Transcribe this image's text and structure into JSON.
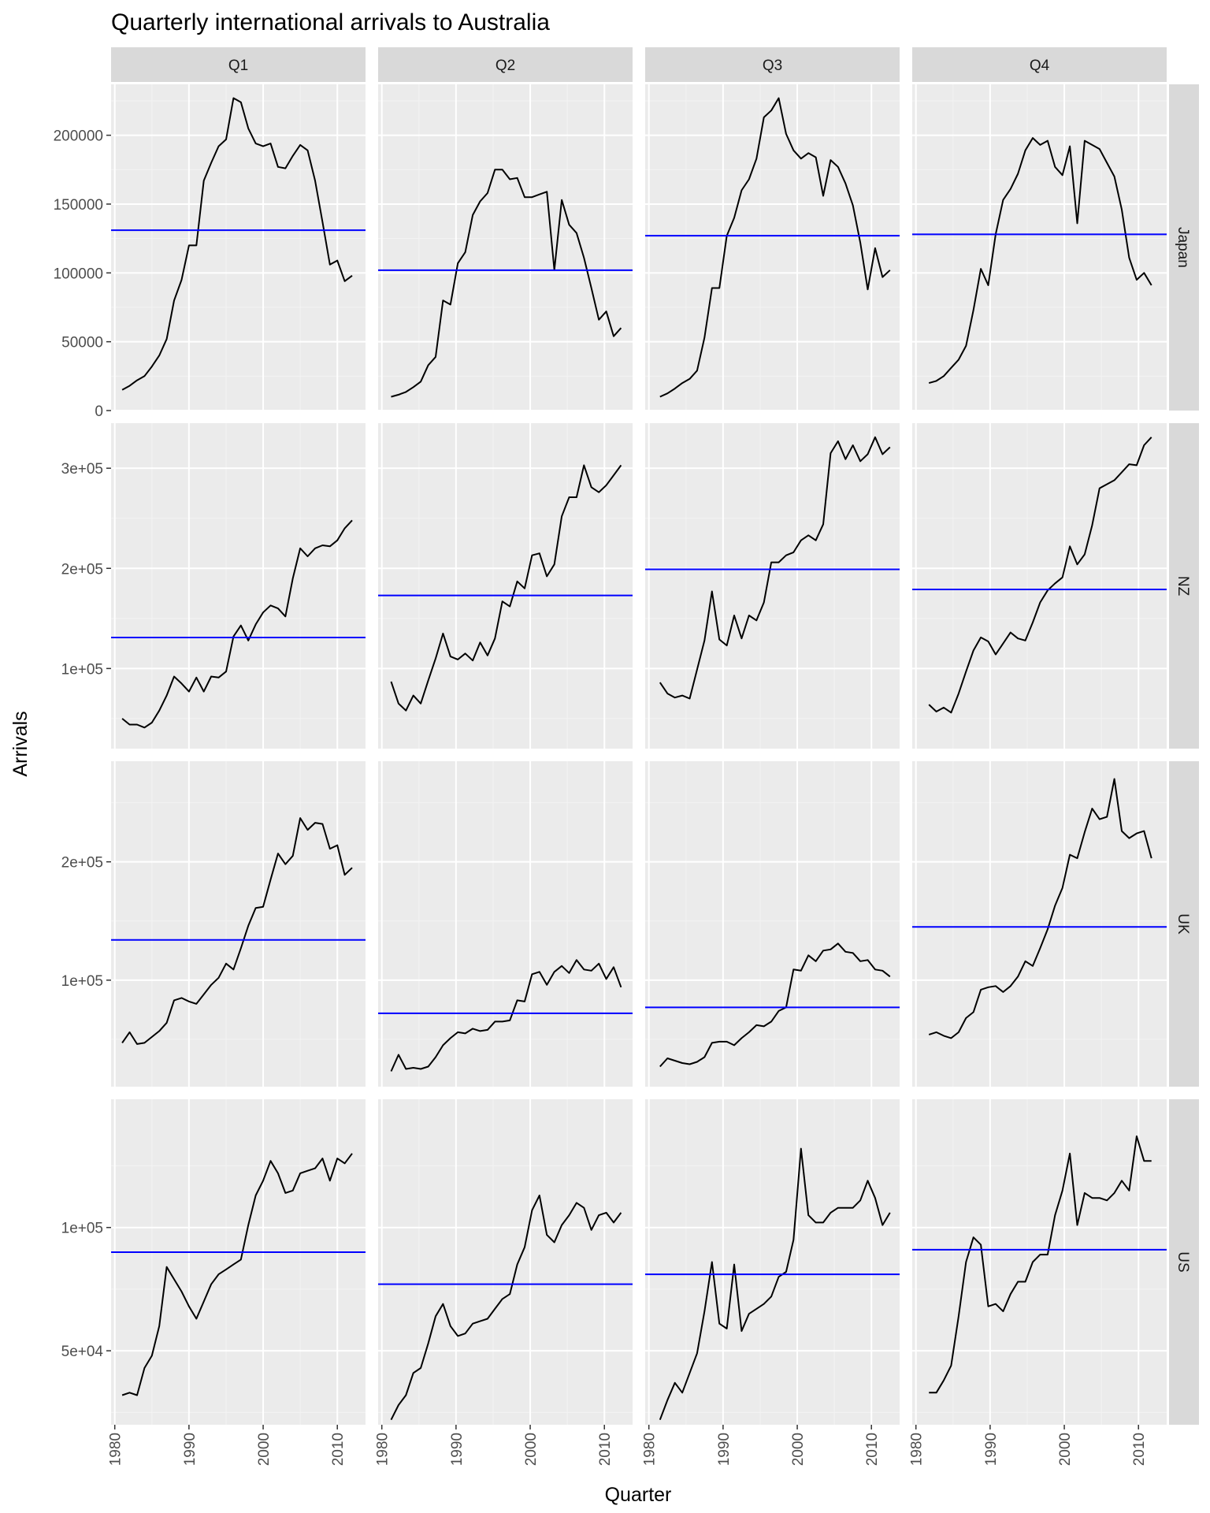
{
  "chart_data": {
    "type": "line",
    "layout": "facet_grid",
    "title": "Quarterly international arrivals to Australia",
    "xlabel": "Quarter",
    "ylabel": "Arrivals",
    "columns": [
      "Q1",
      "Q2",
      "Q3",
      "Q4"
    ],
    "rows": [
      {
        "name": "Japan",
        "ylim": [
          0,
          237000
        ],
        "yticks": [
          0,
          50000,
          100000,
          150000,
          200000
        ],
        "yticklabels": [
          "0",
          "50000",
          "100000",
          "150000",
          "200000"
        ]
      },
      {
        "name": "NZ",
        "ylim": [
          20000,
          345000
        ],
        "yticks": [
          100000,
          200000,
          300000
        ],
        "yticklabels": [
          "1e+05",
          "2e+05",
          "3e+05"
        ]
      },
      {
        "name": "UK",
        "ylim": [
          10000,
          285000
        ],
        "yticks": [
          100000,
          200000
        ],
        "yticklabels": [
          "1e+05",
          "2e+05"
        ]
      },
      {
        "name": "US",
        "ylim": [
          20000,
          152000
        ],
        "yticks": [
          50000,
          100000
        ],
        "yticklabels": [
          "5e+04",
          "1e+05"
        ]
      }
    ],
    "xlim": [
      1979.5,
      2013.8
    ],
    "xticks": [
      1980,
      1990,
      2000,
      2010
    ],
    "xticklabels": [
      "1980",
      "1990",
      "2000",
      "2010"
    ],
    "years": [
      1981,
      1982,
      1983,
      1984,
      1985,
      1986,
      1987,
      1988,
      1989,
      1990,
      1991,
      1992,
      1993,
      1994,
      1995,
      1996,
      1997,
      1998,
      1999,
      2000,
      2001,
      2002,
      2003,
      2004,
      2005,
      2006,
      2007,
      2008,
      2009,
      2010,
      2011,
      2012
    ],
    "series_color": "#000000",
    "mean_line_color": "#0000ff",
    "panels": [
      {
        "row": "Japan",
        "col": "Q1",
        "mean": 131000,
        "x0": 1981.0,
        "values": [
          15000,
          18000,
          22000,
          25000,
          32000,
          40000,
          52000,
          80000,
          95000,
          120000,
          120000,
          167000,
          180000,
          192000,
          197000,
          227000,
          224000,
          205000,
          194000,
          192000,
          194000,
          177000,
          176000,
          185000,
          193000,
          189000,
          167000,
          137000,
          106000,
          109000,
          94000,
          98000
        ]
      },
      {
        "row": "Japan",
        "col": "Q2",
        "mean": 102000,
        "x0": 1981.25,
        "values": [
          10000,
          11500,
          13500,
          17000,
          21000,
          33000,
          39000,
          80000,
          77000,
          107000,
          115000,
          142000,
          152000,
          158000,
          175000,
          175000,
          168000,
          169000,
          155000,
          155000,
          157000,
          159000,
          102000,
          153000,
          135000,
          129000,
          111000,
          89000,
          66000,
          72000,
          54000,
          60000
        ]
      },
      {
        "row": "Japan",
        "col": "Q3",
        "mean": 127000,
        "x0": 1981.5,
        "values": [
          10000,
          12500,
          16000,
          20000,
          23000,
          29000,
          53000,
          89000,
          89000,
          127000,
          140000,
          160000,
          168000,
          183000,
          213000,
          218000,
          227000,
          201000,
          189000,
          183000,
          187000,
          184000,
          156000,
          182000,
          177000,
          165000,
          149000,
          122000,
          88000,
          118000,
          97000,
          102000
        ]
      },
      {
        "row": "Japan",
        "col": "Q4",
        "mean": 128000,
        "x0": 1981.75,
        "values": [
          20000,
          21500,
          25000,
          31000,
          37000,
          47000,
          73000,
          103000,
          91000,
          128000,
          153000,
          161000,
          172000,
          189000,
          198000,
          193000,
          196000,
          177000,
          171000,
          192000,
          136000,
          196000,
          193000,
          190000,
          180000,
          170000,
          146000,
          111000,
          95000,
          100000,
          91000
        ]
      },
      {
        "row": "NZ",
        "col": "Q1",
        "mean": 131000,
        "x0": 1981.0,
        "values": [
          50000,
          44000,
          44000,
          41000,
          46000,
          58000,
          73000,
          92000,
          85000,
          77000,
          91000,
          77000,
          92000,
          91000,
          97000,
          132000,
          143000,
          128000,
          144000,
          156000,
          163000,
          160000,
          152000,
          190000,
          220000,
          212000,
          220000,
          223000,
          222000,
          228000,
          240000,
          248000
        ]
      },
      {
        "row": "NZ",
        "col": "Q2",
        "mean": 173000,
        "x0": 1981.25,
        "values": [
          87000,
          65000,
          58000,
          73000,
          65000,
          88000,
          110000,
          135000,
          112000,
          109000,
          115000,
          108000,
          126000,
          113000,
          130000,
          167000,
          162000,
          187000,
          180000,
          213000,
          215000,
          192000,
          204000,
          252000,
          271000,
          271000,
          303000,
          281000,
          276000,
          283000,
          293000,
          303000
        ]
      },
      {
        "row": "NZ",
        "col": "Q3",
        "mean": 199000,
        "x0": 1981.5,
        "values": [
          86000,
          75000,
          71000,
          73000,
          70000,
          99000,
          128000,
          177000,
          129000,
          123000,
          153000,
          130000,
          153000,
          148000,
          166000,
          206000,
          206000,
          213000,
          216000,
          228000,
          233000,
          228000,
          244000,
          315000,
          327000,
          309000,
          323000,
          307000,
          314000,
          331000,
          314000,
          321000
        ]
      },
      {
        "row": "NZ",
        "col": "Q4",
        "mean": 179000,
        "x0": 1981.75,
        "values": [
          64000,
          57000,
          61000,
          56000,
          75000,
          97000,
          118000,
          131000,
          127000,
          114000,
          125000,
          136000,
          130000,
          128000,
          146000,
          166000,
          178000,
          185000,
          191000,
          222000,
          204000,
          214000,
          243000,
          280000,
          284000,
          288000,
          296000,
          304000,
          303000,
          323000,
          331000
        ]
      },
      {
        "row": "UK",
        "col": "Q1",
        "mean": 134000,
        "x0": 1981.0,
        "values": [
          47000,
          56000,
          46000,
          47000,
          52000,
          57000,
          64000,
          83000,
          85000,
          82000,
          80000,
          88000,
          96000,
          102000,
          114000,
          109000,
          127000,
          146000,
          161000,
          162000,
          185000,
          207000,
          198000,
          205000,
          237000,
          227000,
          233000,
          232000,
          211000,
          214000,
          189000,
          195000
        ]
      },
      {
        "row": "UK",
        "col": "Q2",
        "mean": 72000,
        "x0": 1981.25,
        "values": [
          23000,
          37000,
          25000,
          26000,
          25000,
          27000,
          35000,
          45000,
          51000,
          56000,
          55000,
          59000,
          57000,
          58000,
          65000,
          65000,
          66000,
          83000,
          82000,
          105000,
          107000,
          96000,
          107000,
          112000,
          106000,
          117000,
          109000,
          108000,
          114000,
          101000,
          111000,
          94000
        ]
      },
      {
        "row": "UK",
        "col": "Q3",
        "mean": 77000,
        "x0": 1981.5,
        "values": [
          27000,
          34000,
          32000,
          30000,
          29000,
          31000,
          35000,
          47000,
          48000,
          48000,
          45000,
          51000,
          56000,
          62000,
          61000,
          65000,
          74000,
          77000,
          109000,
          108000,
          121000,
          116000,
          125000,
          126000,
          131000,
          124000,
          123000,
          116000,
          117000,
          109000,
          108000,
          103000
        ]
      },
      {
        "row": "UK",
        "col": "Q4",
        "mean": 145000,
        "x0": 1981.75,
        "values": [
          54000,
          56000,
          53000,
          51000,
          56000,
          68000,
          73000,
          92000,
          94000,
          95000,
          90000,
          95000,
          103000,
          116000,
          112000,
          127000,
          143000,
          163000,
          178000,
          206000,
          203000,
          225000,
          245000,
          236000,
          238000,
          270000,
          226000,
          220000,
          224000,
          226000,
          203000
        ]
      },
      {
        "row": "US",
        "col": "Q1",
        "mean": 90000,
        "x0": 1981.0,
        "values": [
          32000,
          33000,
          32000,
          43000,
          48000,
          60000,
          84000,
          79000,
          74000,
          68000,
          63000,
          70000,
          77000,
          81000,
          83000,
          85000,
          87000,
          101000,
          113000,
          119000,
          127000,
          122000,
          114000,
          115000,
          122000,
          123000,
          124000,
          128000,
          119000,
          128000,
          126000,
          130000
        ]
      },
      {
        "row": "US",
        "col": "Q2",
        "mean": 77000,
        "x0": 1981.25,
        "values": [
          22000,
          28000,
          32000,
          41000,
          43000,
          53000,
          64000,
          69000,
          60000,
          56000,
          57000,
          61000,
          62000,
          63000,
          67000,
          71000,
          73000,
          85000,
          92000,
          107000,
          113000,
          97000,
          94000,
          101000,
          105000,
          110000,
          108000,
          99000,
          105000,
          106000,
          102000,
          106000
        ]
      },
      {
        "row": "US",
        "col": "Q3",
        "mean": 81000,
        "x0": 1981.5,
        "values": [
          22000,
          30000,
          37000,
          33000,
          41000,
          49000,
          66000,
          86000,
          61000,
          59000,
          85000,
          58000,
          65000,
          67000,
          69000,
          72000,
          80000,
          82000,
          95000,
          132000,
          105000,
          102000,
          102000,
          106000,
          108000,
          108000,
          108000,
          111000,
          119000,
          112000,
          101000,
          106000
        ]
      },
      {
        "row": "US",
        "col": "Q4",
        "mean": 91000,
        "x0": 1981.75,
        "values": [
          33000,
          33000,
          38000,
          44000,
          64000,
          86000,
          96000,
          93000,
          68000,
          69000,
          66000,
          73000,
          78000,
          78000,
          86000,
          89000,
          89000,
          105000,
          115000,
          130000,
          101000,
          114000,
          112000,
          112000,
          111000,
          114000,
          119000,
          115000,
          137000,
          127000,
          127000
        ]
      }
    ]
  },
  "colors": {
    "panel_bg": "#ebebeb",
    "strip_bg": "#d9d9d9",
    "grid_major": "#ffffff",
    "grid_minor": "#f3f3f3",
    "tick_text": "#4d4d4d"
  }
}
